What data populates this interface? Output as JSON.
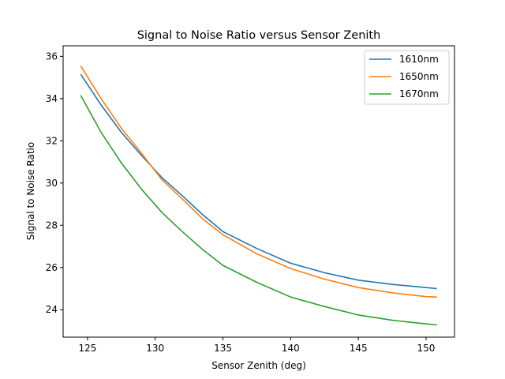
{
  "chart_data": {
    "type": "line",
    "title": "Signal to Noise Ratio versus Sensor Zenith",
    "xlabel": "Sensor Zenith (deg)",
    "ylabel": "Signal to Noise Ratio",
    "xlim": [
      123.2,
      152.1
    ],
    "ylim": [
      22.7,
      36.5
    ],
    "xticks": [
      125,
      130,
      135,
      140,
      145,
      150
    ],
    "yticks": [
      24,
      26,
      28,
      30,
      32,
      34,
      36
    ],
    "grid": false,
    "legend_position": "top-right",
    "series": [
      {
        "name": "1610nm",
        "color": "#1f77b4",
        "x": [
          124.5,
          126,
          127.5,
          129,
          130.5,
          132,
          133.5,
          135,
          137.5,
          140,
          142.5,
          145,
          147.5,
          150,
          150.8
        ],
        "y": [
          35.15,
          33.7,
          32.4,
          31.3,
          30.25,
          29.4,
          28.5,
          27.7,
          26.9,
          26.2,
          25.75,
          25.4,
          25.2,
          25.05,
          25.0
        ]
      },
      {
        "name": "1650nm",
        "color": "#ff7f0e",
        "x": [
          124.5,
          126,
          127.5,
          129,
          130.5,
          132,
          133.5,
          135,
          137.5,
          140,
          142.5,
          145,
          147.5,
          150,
          150.8
        ],
        "y": [
          35.55,
          34.0,
          32.6,
          31.4,
          30.15,
          29.25,
          28.3,
          27.55,
          26.65,
          25.95,
          25.45,
          25.05,
          24.8,
          24.62,
          24.6
        ]
      },
      {
        "name": "1670nm",
        "color": "#2ca02c",
        "x": [
          124.5,
          126,
          127.5,
          129,
          130.5,
          132,
          133.5,
          135,
          137.5,
          140,
          142.5,
          145,
          147.5,
          150,
          150.8
        ],
        "y": [
          34.15,
          32.4,
          30.95,
          29.7,
          28.6,
          27.7,
          26.85,
          26.1,
          25.3,
          24.6,
          24.15,
          23.75,
          23.5,
          23.33,
          23.28
        ]
      }
    ]
  }
}
